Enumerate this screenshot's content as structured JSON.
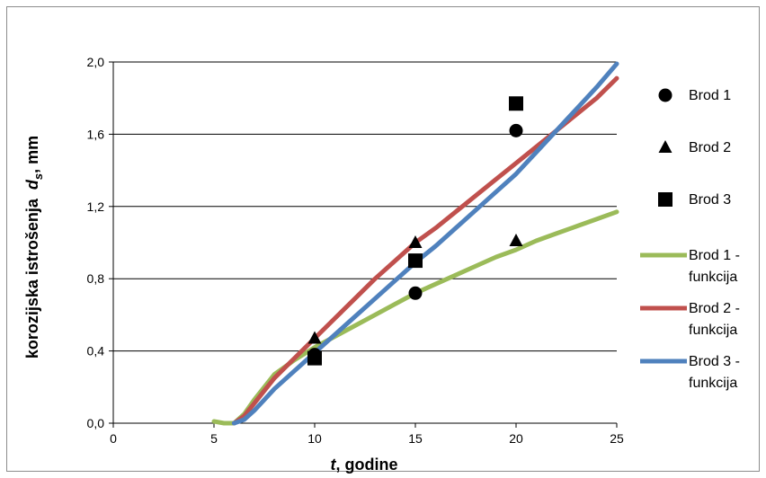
{
  "chart_data": {
    "type": "scatter",
    "title": "",
    "xlabel_italic": "t",
    "xlabel_rest": ", godine",
    "ylabel_text": "korozijska istrošenja  ",
    "ylabel_var": "d",
    "ylabel_sub": "s",
    "ylabel_unit": ", mm",
    "xlim": [
      0,
      25
    ],
    "ylim": [
      0,
      2.0
    ],
    "x_ticks": [
      0,
      5,
      10,
      15,
      20,
      25
    ],
    "x_tick_labels": [
      "0",
      "5",
      "10",
      "15",
      "20",
      "25"
    ],
    "y_ticks": [
      0,
      0.4,
      0.8,
      1.2,
      1.6,
      2.0
    ],
    "y_tick_labels": [
      "0,0",
      "0,4",
      "0,8",
      "1,2",
      "1,6",
      "2,0"
    ],
    "grid": "horizontal",
    "legend_position": "right",
    "points": [
      {
        "name": "Brod 1",
        "marker": "circle",
        "x": [
          10,
          15,
          20
        ],
        "y": [
          0.38,
          0.72,
          1.62
        ]
      },
      {
        "name": "Brod 2",
        "marker": "triangle",
        "x": [
          10,
          15,
          20
        ],
        "y": [
          0.47,
          1.0,
          1.01
        ]
      },
      {
        "name": "Brod 3",
        "marker": "square",
        "x": [
          10,
          15,
          20
        ],
        "y": [
          0.36,
          0.9,
          1.77
        ]
      }
    ],
    "lines": [
      {
        "name_line1": "Brod 1 -",
        "name_line2": "funkcija",
        "color": "#9bbb59",
        "x": [
          5,
          5.5,
          6,
          6.5,
          7,
          7.5,
          8,
          9,
          10,
          11,
          12,
          13,
          14,
          15,
          16,
          17,
          18,
          19,
          20,
          21,
          22,
          23,
          24,
          25
        ],
        "y": [
          0.01,
          0.0,
          0.0,
          0.05,
          0.13,
          0.2,
          0.27,
          0.35,
          0.42,
          0.48,
          0.54,
          0.6,
          0.66,
          0.72,
          0.77,
          0.82,
          0.87,
          0.92,
          0.96,
          1.01,
          1.05,
          1.09,
          1.13,
          1.17
        ]
      },
      {
        "name_line1": "Brod 2 -",
        "name_line2": "funkcija",
        "color": "#c0504d",
        "x": [
          6,
          6.5,
          7,
          7.5,
          8,
          9,
          10,
          11,
          12,
          13,
          14,
          15,
          16,
          17,
          18,
          19,
          20,
          21,
          22,
          23,
          24,
          25
        ],
        "y": [
          0.0,
          0.04,
          0.11,
          0.18,
          0.25,
          0.36,
          0.47,
          0.58,
          0.69,
          0.8,
          0.9,
          1.0,
          1.08,
          1.17,
          1.26,
          1.35,
          1.44,
          1.53,
          1.62,
          1.71,
          1.8,
          1.91
        ]
      },
      {
        "name_line1": "Brod 3 -",
        "name_line2": "funkcija",
        "color": "#4f81bd",
        "x": [
          6,
          6.5,
          7,
          7.5,
          8,
          9,
          10,
          11,
          12,
          13,
          14,
          15,
          16,
          17,
          18,
          19,
          20,
          21,
          22,
          23,
          24,
          25
        ],
        "y": [
          0.0,
          0.02,
          0.07,
          0.13,
          0.19,
          0.29,
          0.39,
          0.49,
          0.59,
          0.69,
          0.79,
          0.89,
          0.98,
          1.08,
          1.18,
          1.28,
          1.38,
          1.5,
          1.62,
          1.74,
          1.86,
          1.99
        ]
      }
    ]
  }
}
